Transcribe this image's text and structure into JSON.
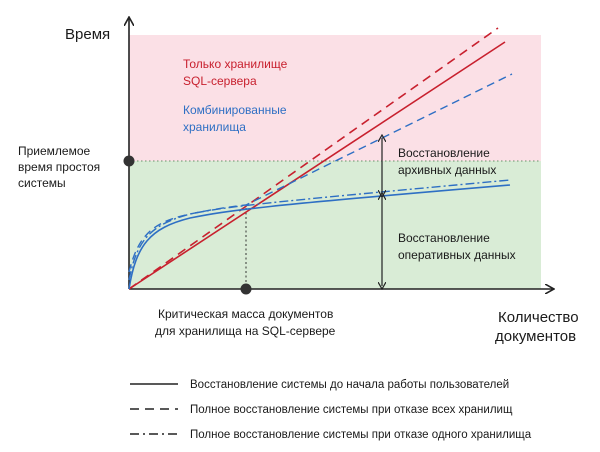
{
  "axes": {
    "y_label": "Время",
    "x_label_line1": "Количество",
    "x_label_line2": "документов",
    "y_marker_line1": "Приемлемое",
    "y_marker_line2": "время простоя",
    "y_marker_line3": "системы",
    "x_marker_line1": "Критическая масса документов",
    "x_marker_line2": "для хранилища на SQL-сервере"
  },
  "regions": {
    "top_color": "#fbe0e6",
    "bottom_color": "#d9ecd6"
  },
  "series": {
    "sql_line1": "Только хранилище",
    "sql_line2": "SQL-сервера",
    "sql_color": "#c8202e",
    "combined_line1": "Комбинированные",
    "combined_line2": "хранилища",
    "combined_color": "#2e6fc4"
  },
  "annotations": {
    "archive_line1": "Восстановление",
    "archive_line2": "архивных данных",
    "operational_line1": "Восстановление",
    "operational_line2": "оперативных данных"
  },
  "legend": {
    "solid": "Восстановление системы до начала работы пользователей",
    "dashed": "Полное восстановление системы при отказе всех хранилищ",
    "dashdot": "Полное восстановление системы при отказе одного хранилища"
  }
}
